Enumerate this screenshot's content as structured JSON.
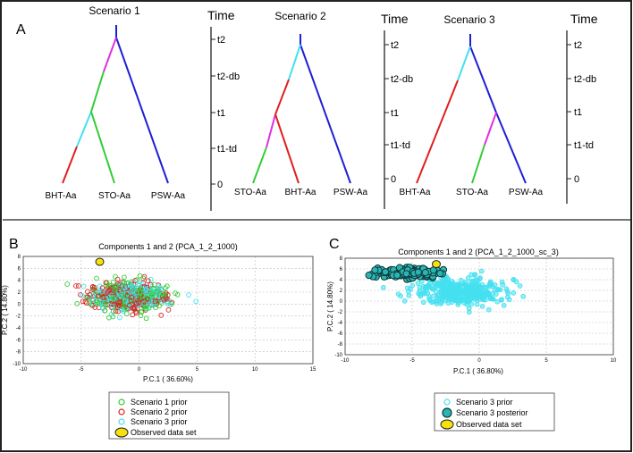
{
  "figure": {
    "panel_a_label": "A",
    "panel_b_label": "B",
    "panel_c_label": "C"
  },
  "trees": [
    {
      "title": "Scenario 1",
      "leaves": [
        "BHT-Aa",
        "STO-Aa",
        "PSW-Aa"
      ]
    },
    {
      "title": "Scenario 2",
      "leaves": [
        "STO-Aa",
        "BHT-Aa",
        "PSW-Aa"
      ]
    },
    {
      "title": "Scenario 3",
      "leaves": [
        "BHT-Aa",
        "STO-Aa",
        "PSW-Aa"
      ]
    }
  ],
  "time_axis": {
    "title": "Time",
    "ticks": [
      "t2",
      "t2-db",
      "t1",
      "t1-td",
      "0"
    ]
  },
  "branch_colors": {
    "blue": "#1f1fd6",
    "magenta": "#e030e0",
    "green": "#33cc33",
    "cyan": "#44e0f0",
    "red": "#e02020"
  },
  "chart_data": [
    {
      "type": "scatter",
      "title": "Components 1 and 2 (PCA_1_2_1000)",
      "xlabel": "P.C.1 (   36.60%)",
      "ylabel": "P.C.2 (   14.80%)",
      "xlim": [
        -10,
        15
      ],
      "ylim": [
        -10,
        8
      ],
      "xticks": [
        "-10",
        "-5",
        "0",
        "5",
        "10",
        "15"
      ],
      "yticks": [
        "8",
        "6",
        "4",
        "2",
        "0",
        "-2",
        "-4",
        "-6",
        "-8",
        "-10"
      ],
      "grid": true,
      "legend": [
        "Scenario 1 prior",
        "Scenario 2 prior",
        "Scenario 3 prior",
        "Observed data set"
      ],
      "observed": [
        -3.4,
        7.1
      ],
      "series": [
        {
          "name": "Scenario 1 prior",
          "color": "#33cc33",
          "center": [
            -1,
            1.2
          ],
          "spread": [
            3.4,
            2.4
          ],
          "n": 240
        },
        {
          "name": "Scenario 2 prior",
          "color": "#e02020",
          "center": [
            -1,
            1.2
          ],
          "spread": [
            3.4,
            2.4
          ],
          "n": 240
        },
        {
          "name": "Scenario 3 prior",
          "color": "#44e0f0",
          "center": [
            -1,
            1.2
          ],
          "spread": [
            3.2,
            2.2
          ],
          "n": 240
        }
      ]
    },
    {
      "type": "scatter",
      "title": "Components 1 and 2 (PCA_1_2_1000_sc_3)",
      "xlabel": "P.C.1 (   36.80%)",
      "ylabel": "P.C.2 (   14.80%)",
      "xlim": [
        -10,
        10
      ],
      "ylim": [
        -10,
        8
      ],
      "xticks": [
        "-10",
        "-5",
        "0",
        "5",
        "10"
      ],
      "yticks": [
        "8",
        "6",
        "4",
        "2",
        "0",
        "-2",
        "-4",
        "-6",
        "-8",
        "-10"
      ],
      "grid": true,
      "legend": [
        "Scenario 3 prior",
        "Scenario 3 posterior",
        "Observed data set"
      ],
      "observed": [
        -3.2,
        6.9
      ],
      "series": [
        {
          "name": "Scenario 3 prior",
          "color": "#44e0f0",
          "center": [
            -1.5,
            1.8
          ],
          "spread": [
            3.6,
            2.6
          ],
          "n": 380
        },
        {
          "name": "Scenario 3 posterior",
          "color": "#2ab5b5",
          "center": [
            -5.5,
            5.3
          ],
          "spread": [
            2.4,
            0.9
          ],
          "n": 170
        }
      ]
    }
  ]
}
